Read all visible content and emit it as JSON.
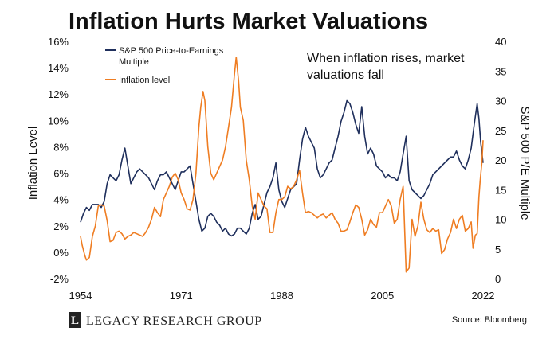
{
  "chart_data": {
    "type": "line",
    "title": "Inflation Hurts Market Valuations",
    "annotation": [
      "When inflation rises, market",
      "valuations fall"
    ],
    "left_axis": {
      "label": "Inflation Level",
      "ylim": [
        -2,
        16
      ],
      "ticks": [
        "-2%",
        "0%",
        "2%",
        "4%",
        "6%",
        "8%",
        "10%",
        "12%",
        "14%",
        "16%"
      ]
    },
    "right_axis": {
      "label": "S&P 500 P/E Multiple",
      "ylim": [
        0,
        40
      ],
      "ticks": [
        "0",
        "5",
        "10",
        "15",
        "20",
        "25",
        "30",
        "35",
        "40"
      ]
    },
    "x_axis": {
      "xlim": [
        1954,
        2022
      ],
      "ticks": [
        "1954",
        "1971",
        "1988",
        "2005",
        "2022"
      ]
    },
    "legend": {
      "placement": "top-left",
      "entries": [
        {
          "label_lines": [
            "S&P 500 Price-to-Earnings",
            "Multiple"
          ]
        },
        {
          "label_lines": [
            "Inflation level"
          ]
        }
      ]
    },
    "series": [
      {
        "name": "S&P 500 Price-to-Earnings Multiple",
        "axis": "right",
        "color": "#1f2f5c",
        "points": [
          [
            1954,
            9.5
          ],
          [
            1954.5,
            11
          ],
          [
            1955,
            12
          ],
          [
            1955.5,
            11.5
          ],
          [
            1956,
            12.5
          ],
          [
            1956.5,
            12.5
          ],
          [
            1957,
            12.5
          ],
          [
            1957.5,
            12
          ],
          [
            1958,
            13
          ],
          [
            1958.5,
            16
          ],
          [
            1959,
            17.5
          ],
          [
            1959.5,
            17
          ],
          [
            1960,
            16.5
          ],
          [
            1960.5,
            17.5
          ],
          [
            1961,
            20
          ],
          [
            1961.5,
            22
          ],
          [
            1962,
            19
          ],
          [
            1962.5,
            16
          ],
          [
            1963,
            17
          ],
          [
            1963.5,
            18
          ],
          [
            1964,
            18.5
          ],
          [
            1964.5,
            18
          ],
          [
            1965,
            17.5
          ],
          [
            1965.5,
            17
          ],
          [
            1966,
            16
          ],
          [
            1966.5,
            15
          ],
          [
            1967,
            16.5
          ],
          [
            1967.5,
            17.5
          ],
          [
            1968,
            17.5
          ],
          [
            1968.5,
            18
          ],
          [
            1969,
            17
          ],
          [
            1969.5,
            16
          ],
          [
            1970,
            15
          ],
          [
            1970.5,
            16.5
          ],
          [
            1971,
            18
          ],
          [
            1971.5,
            18
          ],
          [
            1972,
            18.5
          ],
          [
            1972.5,
            19
          ],
          [
            1973,
            16
          ],
          [
            1973.5,
            13
          ],
          [
            1974,
            10
          ],
          [
            1974.5,
            8
          ],
          [
            1975,
            8.5
          ],
          [
            1975.5,
            10.5
          ],
          [
            1976,
            11
          ],
          [
            1976.5,
            10.5
          ],
          [
            1977,
            9.5
          ],
          [
            1977.5,
            9
          ],
          [
            1978,
            8
          ],
          [
            1978.5,
            8.5
          ],
          [
            1979,
            7.5
          ],
          [
            1979.5,
            7.2
          ],
          [
            1980,
            7.5
          ],
          [
            1980.5,
            8.5
          ],
          [
            1981,
            8.5
          ],
          [
            1981.5,
            8
          ],
          [
            1982,
            7.5
          ],
          [
            1982.5,
            8.5
          ],
          [
            1983,
            11
          ],
          [
            1983.5,
            12.5
          ],
          [
            1984,
            10
          ],
          [
            1984.5,
            10.5
          ],
          [
            1985,
            12.5
          ],
          [
            1985.5,
            14.5
          ],
          [
            1986,
            15.5
          ],
          [
            1986.5,
            17
          ],
          [
            1987,
            19.5
          ],
          [
            1987.5,
            15
          ],
          [
            1988,
            13
          ],
          [
            1988.5,
            12
          ],
          [
            1989,
            13.5
          ],
          [
            1989.5,
            15
          ],
          [
            1990,
            15.5
          ],
          [
            1990.5,
            16
          ],
          [
            1991,
            20
          ],
          [
            1991.5,
            23.5
          ],
          [
            1992,
            25.5
          ],
          [
            1992.5,
            24
          ],
          [
            1993,
            23
          ],
          [
            1993.5,
            22
          ],
          [
            1994,
            18.5
          ],
          [
            1994.5,
            17
          ],
          [
            1995,
            17.5
          ],
          [
            1995.5,
            18.5
          ],
          [
            1996,
            19.5
          ],
          [
            1996.5,
            20
          ],
          [
            1997,
            22
          ],
          [
            1997.5,
            24
          ],
          [
            1998,
            26.5
          ],
          [
            1998.5,
            28
          ],
          [
            1999,
            30
          ],
          [
            1999.5,
            29.5
          ],
          [
            2000,
            28
          ],
          [
            2000.5,
            26
          ],
          [
            2001,
            24.5
          ],
          [
            2001.5,
            29
          ],
          [
            2002,
            24
          ],
          [
            2002.5,
            21
          ],
          [
            2003,
            22
          ],
          [
            2003.5,
            21
          ],
          [
            2004,
            19
          ],
          [
            2004.5,
            18.5
          ],
          [
            2005,
            18
          ],
          [
            2005.5,
            17
          ],
          [
            2006,
            17.5
          ],
          [
            2006.5,
            17
          ],
          [
            2007,
            17
          ],
          [
            2007.5,
            16.5
          ],
          [
            2008,
            18
          ],
          [
            2008.5,
            21
          ],
          [
            2009,
            24
          ],
          [
            2009.5,
            16.5
          ],
          [
            2010,
            15
          ],
          [
            2010.5,
            14.5
          ],
          [
            2011,
            14
          ],
          [
            2011.5,
            13.5
          ],
          [
            2012,
            14
          ],
          [
            2012.5,
            15
          ],
          [
            2013,
            16
          ],
          [
            2013.5,
            17.5
          ],
          [
            2014,
            18
          ],
          [
            2014.5,
            18.5
          ],
          [
            2015,
            19
          ],
          [
            2015.5,
            19.5
          ],
          [
            2016,
            20
          ],
          [
            2016.5,
            20.5
          ],
          [
            2017,
            20.5
          ],
          [
            2017.5,
            21.5
          ],
          [
            2018,
            20
          ],
          [
            2018.5,
            19
          ],
          [
            2019,
            18.5
          ],
          [
            2019.5,
            20
          ],
          [
            2020,
            22
          ],
          [
            2020.5,
            26
          ],
          [
            2021,
            29.5
          ],
          [
            2021.3,
            27
          ],
          [
            2021.6,
            23
          ],
          [
            2022,
            19.5
          ]
        ]
      },
      {
        "name": "Inflation level",
        "axis": "left",
        "color": "#ef7d22",
        "points": [
          [
            1954,
            1.2
          ],
          [
            1954.3,
            0.5
          ],
          [
            1954.7,
            -0.2
          ],
          [
            1955,
            -0.6
          ],
          [
            1955.5,
            -0.4
          ],
          [
            1956,
            1.2
          ],
          [
            1956.5,
            2
          ],
          [
            1957,
            3.5
          ],
          [
            1957.5,
            3.6
          ],
          [
            1958,
            3.5
          ],
          [
            1958.5,
            2.4
          ],
          [
            1959,
            0.8
          ],
          [
            1959.5,
            0.9
          ],
          [
            1960,
            1.5
          ],
          [
            1960.5,
            1.6
          ],
          [
            1961,
            1.4
          ],
          [
            1961.5,
            1
          ],
          [
            1962,
            1.2
          ],
          [
            1962.5,
            1.3
          ],
          [
            1963,
            1.5
          ],
          [
            1963.5,
            1.4
          ],
          [
            1964,
            1.3
          ],
          [
            1964.5,
            1.2
          ],
          [
            1965,
            1.5
          ],
          [
            1965.5,
            1.9
          ],
          [
            1966,
            2.5
          ],
          [
            1966.5,
            3.4
          ],
          [
            1967,
            3
          ],
          [
            1967.5,
            2.7
          ],
          [
            1968,
            4
          ],
          [
            1968.5,
            4.5
          ],
          [
            1969,
            5
          ],
          [
            1969.5,
            5.7
          ],
          [
            1970,
            6
          ],
          [
            1970.5,
            5.5
          ],
          [
            1971,
            4.5
          ],
          [
            1971.5,
            4
          ],
          [
            1972,
            3.3
          ],
          [
            1972.5,
            3.2
          ],
          [
            1973,
            4
          ],
          [
            1973.5,
            6
          ],
          [
            1974,
            9.5
          ],
          [
            1974.3,
            11
          ],
          [
            1974.7,
            12.2
          ],
          [
            1975,
            11.5
          ],
          [
            1975.5,
            8
          ],
          [
            1976,
            6
          ],
          [
            1976.5,
            5.5
          ],
          [
            1977,
            6
          ],
          [
            1977.5,
            6.5
          ],
          [
            1978,
            7
          ],
          [
            1978.5,
            8
          ],
          [
            1979,
            9.5
          ],
          [
            1979.5,
            11
          ],
          [
            1980,
            13.5
          ],
          [
            1980.3,
            14.8
          ],
          [
            1980.7,
            13
          ],
          [
            1981,
            11
          ],
          [
            1981.5,
            10
          ],
          [
            1982,
            7
          ],
          [
            1982.5,
            5.5
          ],
          [
            1983,
            3.5
          ],
          [
            1983.5,
            2.5
          ],
          [
            1984,
            4.5
          ],
          [
            1984.5,
            4
          ],
          [
            1985,
            3.5
          ],
          [
            1985.5,
            3.3
          ],
          [
            1986,
            1.5
          ],
          [
            1986.5,
            1.5
          ],
          [
            1987,
            3
          ],
          [
            1987.5,
            4
          ],
          [
            1988,
            4
          ],
          [
            1988.5,
            4.2
          ],
          [
            1989,
            5
          ],
          [
            1989.5,
            4.8
          ],
          [
            1990,
            5
          ],
          [
            1990.5,
            5.5
          ],
          [
            1991,
            6.2
          ],
          [
            1991.5,
            4.5
          ],
          [
            1992,
            3
          ],
          [
            1992.5,
            3.1
          ],
          [
            1993,
            3
          ],
          [
            1993.5,
            2.8
          ],
          [
            1994,
            2.6
          ],
          [
            1994.5,
            2.8
          ],
          [
            1995,
            2.9
          ],
          [
            1995.5,
            2.6
          ],
          [
            1996,
            2.8
          ],
          [
            1996.5,
            3
          ],
          [
            1997,
            2.5
          ],
          [
            1997.5,
            2.2
          ],
          [
            1998,
            1.6
          ],
          [
            1998.5,
            1.6
          ],
          [
            1999,
            1.7
          ],
          [
            1999.5,
            2.3
          ],
          [
            2000,
            3
          ],
          [
            2000.5,
            3.6
          ],
          [
            2001,
            3.4
          ],
          [
            2001.5,
            2.5
          ],
          [
            2002,
            1.3
          ],
          [
            2002.5,
            1.7
          ],
          [
            2003,
            2.5
          ],
          [
            2003.5,
            2.1
          ],
          [
            2004,
            1.9
          ],
          [
            2004.5,
            3
          ],
          [
            2005,
            3
          ],
          [
            2005.5,
            3.5
          ],
          [
            2006,
            4
          ],
          [
            2006.5,
            3.5
          ],
          [
            2007,
            2.2
          ],
          [
            2007.5,
            2.5
          ],
          [
            2008,
            4
          ],
          [
            2008.5,
            5
          ],
          [
            2009,
            -1.5
          ],
          [
            2009.5,
            -1.2
          ],
          [
            2010,
            2.5
          ],
          [
            2010.5,
            1.2
          ],
          [
            2011,
            2
          ],
          [
            2011.5,
            3.8
          ],
          [
            2012,
            2.5
          ],
          [
            2012.5,
            1.7
          ],
          [
            2013,
            1.5
          ],
          [
            2013.5,
            1.8
          ],
          [
            2014,
            1.6
          ],
          [
            2014.5,
            1.7
          ],
          [
            2015,
            -0.1
          ],
          [
            2015.5,
            0.2
          ],
          [
            2016,
            1
          ],
          [
            2016.5,
            1.5
          ],
          [
            2017,
            2.5
          ],
          [
            2017.5,
            1.8
          ],
          [
            2018,
            2.5
          ],
          [
            2018.5,
            2.8
          ],
          [
            2019,
            1.6
          ],
          [
            2019.5,
            1.8
          ],
          [
            2020,
            2.3
          ],
          [
            2020.3,
            0.3
          ],
          [
            2020.7,
            1.3
          ],
          [
            2021,
            1.4
          ],
          [
            2021.3,
            4.2
          ],
          [
            2021.5,
            5.4
          ],
          [
            2021.8,
            6.8
          ],
          [
            2022,
            8.5
          ]
        ]
      }
    ]
  },
  "footer": {
    "brand_mark": "L",
    "brand_name": "LEGACY RESEARCH GROUP",
    "source": "Source: Bloomberg"
  }
}
